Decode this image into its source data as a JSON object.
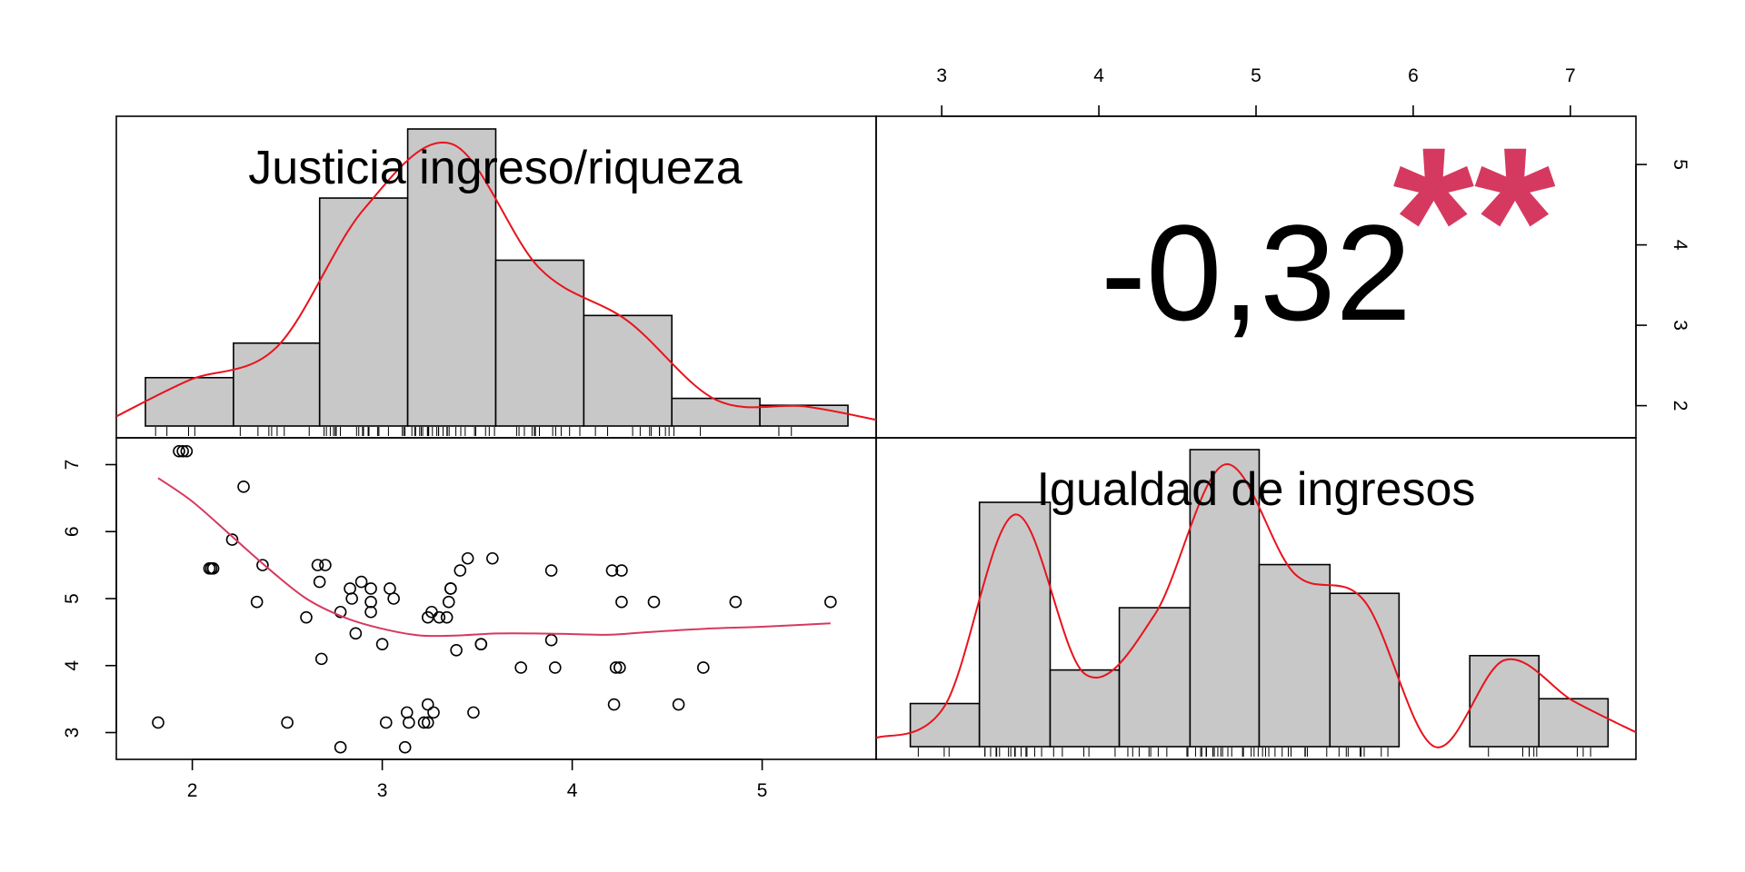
{
  "chart_data": [
    {
      "type": "bar",
      "panel": "top-left",
      "title": "Justicia ingreso/riqueza",
      "bin_edges": [
        1.75,
        2.22,
        2.68,
        3.15,
        3.62,
        4.09,
        4.56,
        5.03,
        5.5
      ],
      "values": [
        0.7,
        1.2,
        3.3,
        4.3,
        2.4,
        1.6,
        0.4,
        0.3
      ],
      "density_curve": true,
      "rug": true
    },
    {
      "type": "text",
      "panel": "top-right",
      "correlation": "-0,32",
      "significance": "**"
    },
    {
      "type": "scatter",
      "panel": "bottom-left",
      "x_ticks": [
        "2",
        "3",
        "4",
        "5"
      ],
      "y_ticks": [
        "3",
        "4",
        "5",
        "6",
        "7"
      ],
      "xlim": [
        1.6,
        5.6
      ],
      "ylim": [
        2.6,
        7.4
      ],
      "points": [
        [
          1.93,
          7.2
        ],
        [
          1.95,
          7.2
        ],
        [
          1.97,
          7.2
        ],
        [
          2.27,
          6.67
        ],
        [
          2.21,
          5.88
        ],
        [
          2.09,
          5.45
        ],
        [
          2.1,
          5.45
        ],
        [
          2.11,
          5.45
        ],
        [
          2.37,
          5.5
        ],
        [
          2.34,
          4.95
        ],
        [
          1.82,
          3.15
        ],
        [
          2.5,
          3.15
        ],
        [
          2.6,
          4.72
        ],
        [
          2.66,
          5.5
        ],
        [
          2.7,
          5.5
        ],
        [
          2.67,
          5.25
        ],
        [
          2.68,
          4.1
        ],
        [
          2.78,
          4.8
        ],
        [
          2.78,
          2.78
        ],
        [
          2.83,
          5.15
        ],
        [
          2.84,
          5.0
        ],
        [
          2.86,
          4.48
        ],
        [
          2.89,
          5.25
        ],
        [
          2.94,
          5.15
        ],
        [
          2.94,
          4.95
        ],
        [
          2.94,
          4.8
        ],
        [
          3.0,
          4.32
        ],
        [
          3.02,
          3.15
        ],
        [
          3.04,
          5.15
        ],
        [
          3.06,
          5.0
        ],
        [
          3.12,
          2.78
        ],
        [
          3.13,
          3.3
        ],
        [
          3.14,
          3.15
        ],
        [
          3.22,
          3.15
        ],
        [
          3.24,
          3.15
        ],
        [
          3.24,
          3.42
        ],
        [
          3.24,
          4.72
        ],
        [
          3.26,
          4.8
        ],
        [
          3.27,
          3.3
        ],
        [
          3.3,
          4.72
        ],
        [
          3.34,
          4.72
        ],
        [
          3.35,
          4.95
        ],
        [
          3.36,
          5.15
        ],
        [
          3.36,
          5.15
        ],
        [
          3.39,
          4.23
        ],
        [
          3.41,
          5.42
        ],
        [
          3.45,
          5.6
        ],
        [
          3.48,
          3.3
        ],
        [
          3.52,
          4.32
        ],
        [
          3.52,
          4.32
        ],
        [
          3.58,
          5.6
        ],
        [
          3.73,
          3.97
        ],
        [
          3.89,
          5.42
        ],
        [
          3.89,
          4.38
        ],
        [
          3.91,
          3.97
        ],
        [
          4.21,
          5.42
        ],
        [
          4.22,
          3.42
        ],
        [
          4.23,
          3.97
        ],
        [
          4.25,
          3.97
        ],
        [
          4.26,
          5.42
        ],
        [
          4.26,
          4.95
        ],
        [
          4.43,
          4.95
        ],
        [
          4.56,
          3.42
        ],
        [
          4.69,
          3.97
        ],
        [
          4.86,
          4.95
        ],
        [
          5.36,
          4.95
        ]
      ],
      "loess": [
        [
          1.82,
          6.8
        ],
        [
          2.0,
          6.45
        ],
        [
          2.2,
          5.95
        ],
        [
          2.4,
          5.45
        ],
        [
          2.6,
          5.0
        ],
        [
          2.8,
          4.72
        ],
        [
          3.0,
          4.55
        ],
        [
          3.2,
          4.45
        ],
        [
          3.4,
          4.45
        ],
        [
          3.6,
          4.48
        ],
        [
          3.8,
          4.48
        ],
        [
          4.0,
          4.47
        ],
        [
          4.2,
          4.46
        ],
        [
          4.4,
          4.5
        ],
        [
          4.7,
          4.55
        ],
        [
          5.0,
          4.58
        ],
        [
          5.36,
          4.63
        ]
      ]
    },
    {
      "type": "bar",
      "panel": "bottom-right",
      "title": "Igualdad de ingresos",
      "x_ticks": [
        "3",
        "4",
        "5",
        "6",
        "7"
      ],
      "xlim": [
        2.6,
        7.4
      ],
      "bin_edges": [
        2.8,
        3.24,
        3.69,
        4.13,
        4.58,
        5.02,
        5.47,
        5.91,
        6.36,
        6.8,
        7.24
      ],
      "values": [
        0.45,
        2.55,
        0.8,
        1.45,
        3.1,
        1.9,
        1.6,
        0.0,
        0.95,
        0.5
      ],
      "density_curve": true,
      "rug": true
    }
  ],
  "right_axis": {
    "ticks": [
      "2",
      "3",
      "4",
      "5"
    ]
  }
}
